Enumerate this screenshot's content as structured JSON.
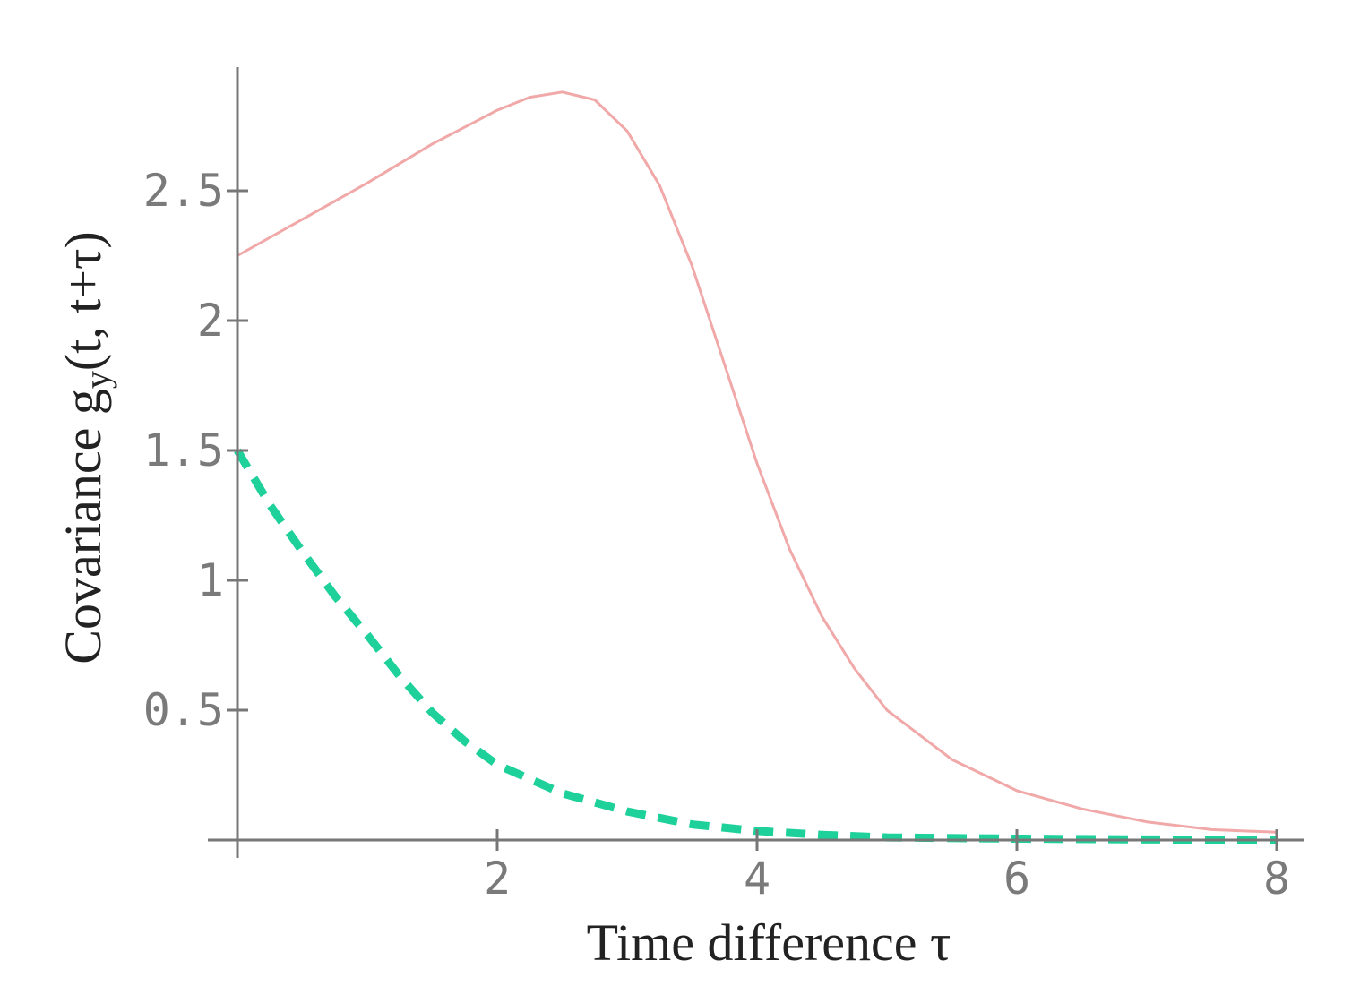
{
  "chart_data": {
    "type": "line",
    "xlabel": "Time difference",
    "xlabel_symbol": "τ",
    "ylabel": "Covariance",
    "ylabel_symbol": "g",
    "ylabel_subscript": "y",
    "ylabel_args": "(t, t+τ)",
    "xlim": [
      0,
      8
    ],
    "ylim": [
      0,
      2.9
    ],
    "x_ticks": [
      {
        "value": 2,
        "label": "2"
      },
      {
        "value": 4,
        "label": "4"
      },
      {
        "value": 6,
        "label": "6"
      },
      {
        "value": 8,
        "label": "8"
      }
    ],
    "y_ticks": [
      {
        "value": 0.5,
        "label": "0.5"
      },
      {
        "value": 1,
        "label": "1"
      },
      {
        "value": 1.5,
        "label": "1.5"
      },
      {
        "value": 2,
        "label": "2"
      },
      {
        "value": 2.5,
        "label": "2.5"
      }
    ],
    "grid": false,
    "series": [
      {
        "style": "solid",
        "color": "#f0a8a8",
        "x": [
          0,
          0.5,
          1,
          1.5,
          2,
          2.25,
          2.5,
          2.75,
          3,
          3.25,
          3.5,
          3.75,
          4,
          4.25,
          4.5,
          4.75,
          5,
          5.5,
          6,
          6.5,
          7,
          7.5,
          8
        ],
        "y": [
          2.25,
          2.39,
          2.53,
          2.68,
          2.81,
          2.86,
          2.88,
          2.85,
          2.73,
          2.52,
          2.21,
          1.83,
          1.45,
          1.12,
          0.86,
          0.66,
          0.5,
          0.31,
          0.19,
          0.12,
          0.07,
          0.04,
          0.03
        ]
      },
      {
        "style": "dashed",
        "color": "#1ed09a",
        "x": [
          0,
          0.25,
          0.5,
          0.75,
          1,
          1.25,
          1.5,
          1.75,
          2,
          2.5,
          3,
          3.5,
          4,
          4.5,
          5,
          6,
          7,
          8
        ],
        "y": [
          1.5,
          1.29,
          1.11,
          0.94,
          0.79,
          0.63,
          0.49,
          0.38,
          0.29,
          0.18,
          0.11,
          0.06,
          0.035,
          0.02,
          0.01,
          0.005,
          0.002,
          0.001
        ]
      }
    ]
  }
}
